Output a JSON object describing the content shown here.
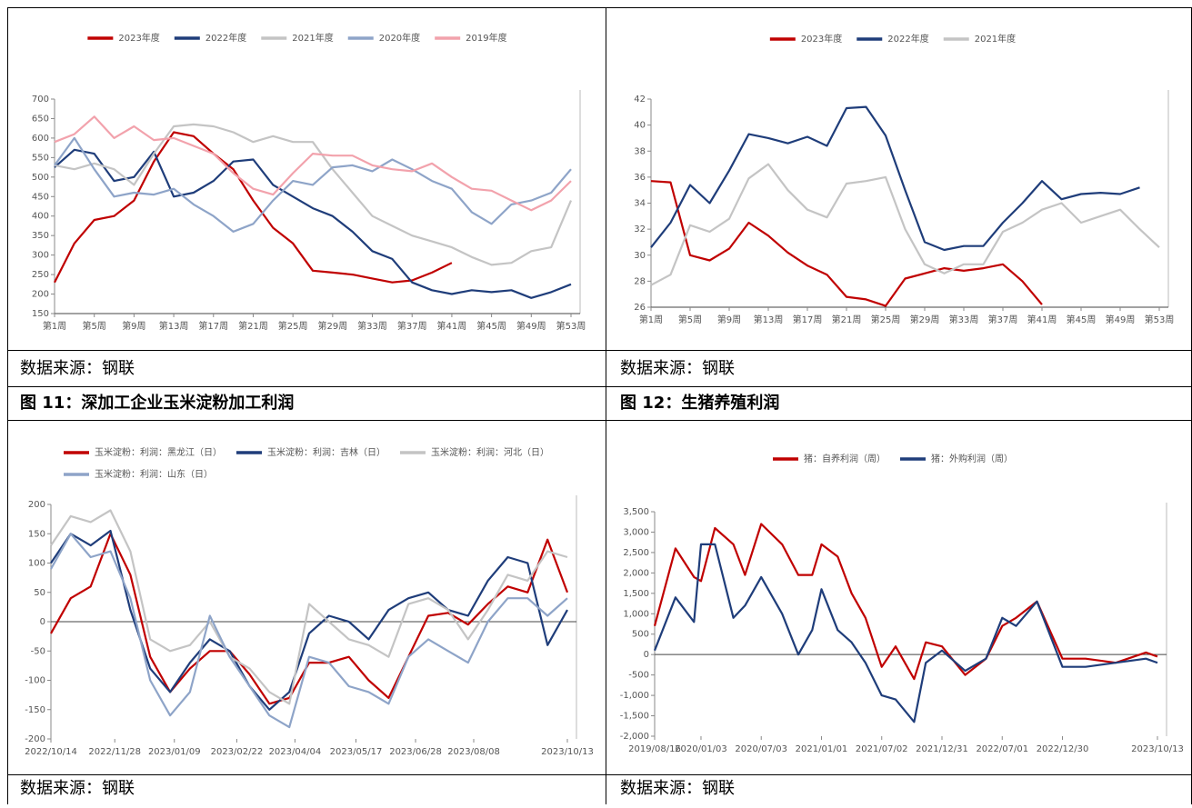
{
  "chart_data": [
    {
      "type": "line",
      "x": [
        1,
        3,
        5,
        7,
        9,
        11,
        13,
        15,
        17,
        19,
        21,
        23,
        25,
        27,
        29,
        31,
        33,
        35,
        37,
        39,
        41,
        43,
        45,
        47,
        49,
        51,
        53
      ],
      "xlim": [
        1,
        53
      ],
      "xticks": [
        {
          "value": 1,
          "label": "第1周"
        },
        {
          "value": 5,
          "label": "第5周"
        },
        {
          "value": 9,
          "label": "第9周"
        },
        {
          "value": 13,
          "label": "第13周"
        },
        {
          "value": 17,
          "label": "第17周"
        },
        {
          "value": 21,
          "label": "第21周"
        },
        {
          "value": 25,
          "label": "第25周"
        },
        {
          "value": 29,
          "label": "第29周"
        },
        {
          "value": 33,
          "label": "第33周"
        },
        {
          "value": 37,
          "label": "第37周"
        },
        {
          "value": 41,
          "label": "第41周"
        },
        {
          "value": 45,
          "label": "第45周"
        },
        {
          "value": 49,
          "label": "第49周"
        },
        {
          "value": 53,
          "label": "第53周"
        }
      ],
      "ylim": [
        150,
        700
      ],
      "yticks": [
        150,
        200,
        250,
        300,
        350,
        400,
        450,
        500,
        550,
        600,
        650,
        700
      ],
      "series": [
        {
          "name": "2023年度",
          "color": "#c00000",
          "values": [
            230,
            330,
            390,
            400,
            440,
            540,
            615,
            605,
            560,
            520,
            440,
            370,
            330,
            260,
            255,
            250,
            240,
            230,
            235,
            255,
            280,
            null,
            null,
            null,
            null,
            null,
            null
          ]
        },
        {
          "name": "2022年度",
          "color": "#1f3d7a",
          "values": [
            525,
            570,
            560,
            490,
            500,
            565,
            450,
            460,
            490,
            540,
            545,
            480,
            450,
            420,
            400,
            360,
            310,
            290,
            230,
            210,
            200,
            210,
            205,
            210,
            190,
            205,
            225
          ]
        },
        {
          "name": "2021年度",
          "color": "#c4c4c4",
          "values": [
            530,
            520,
            535,
            520,
            480,
            560,
            630,
            635,
            630,
            615,
            590,
            605,
            590,
            590,
            520,
            460,
            400,
            375,
            350,
            335,
            320,
            295,
            275,
            280,
            310,
            320,
            440
          ]
        },
        {
          "name": "2020年度",
          "color": "#8ea4c8",
          "values": [
            530,
            600,
            520,
            450,
            460,
            455,
            470,
            430,
            400,
            360,
            380,
            440,
            490,
            480,
            525,
            530,
            515,
            545,
            520,
            490,
            470,
            410,
            380,
            430,
            440,
            460,
            520
          ]
        },
        {
          "name": "2019年度",
          "color": "#f2a2ac",
          "values": [
            590,
            610,
            655,
            600,
            630,
            595,
            600,
            580,
            560,
            510,
            470,
            455,
            510,
            560,
            555,
            555,
            530,
            520,
            515,
            535,
            500,
            470,
            465,
            440,
            415,
            440,
            490
          ]
        }
      ]
    },
    {
      "type": "line",
      "x": [
        1,
        3,
        5,
        7,
        9,
        11,
        13,
        15,
        17,
        19,
        21,
        23,
        25,
        27,
        29,
        31,
        33,
        35,
        37,
        39,
        41,
        43,
        45,
        47,
        49,
        51,
        53
      ],
      "xlim": [
        1,
        53
      ],
      "xticks": [
        {
          "value": 1,
          "label": "第1周"
        },
        {
          "value": 5,
          "label": "第5周"
        },
        {
          "value": 9,
          "label": "第9周"
        },
        {
          "value": 13,
          "label": "第13周"
        },
        {
          "value": 17,
          "label": "第17周"
        },
        {
          "value": 21,
          "label": "第21周"
        },
        {
          "value": 25,
          "label": "第25周"
        },
        {
          "value": 29,
          "label": "第29周"
        },
        {
          "value": 33,
          "label": "第33周"
        },
        {
          "value": 37,
          "label": "第37周"
        },
        {
          "value": 41,
          "label": "第41周"
        },
        {
          "value": 45,
          "label": "第45周"
        },
        {
          "value": 49,
          "label": "第49周"
        },
        {
          "value": 53,
          "label": "第53周"
        }
      ],
      "ylim": [
        26,
        42
      ],
      "yticks": [
        26,
        28,
        30,
        32,
        34,
        36,
        38,
        40,
        42
      ],
      "series": [
        {
          "name": "2023年度",
          "color": "#c00000",
          "values": [
            35.7,
            35.6,
            30,
            29.6,
            30.5,
            32.5,
            31.5,
            30.2,
            29.2,
            28.5,
            26.8,
            26.6,
            26.1,
            28.2,
            28.6,
            29,
            28.8,
            29,
            29.3,
            28,
            26.2,
            null,
            null,
            null,
            null,
            null,
            null
          ]
        },
        {
          "name": "2022年度",
          "color": "#1f3d7a",
          "values": [
            30.6,
            32.5,
            35.4,
            34,
            36.5,
            39.3,
            39,
            38.6,
            39.1,
            38.4,
            41.3,
            41.4,
            39.2,
            35,
            31,
            30.4,
            30.7,
            30.7,
            32.5,
            34,
            35.7,
            34.3,
            34.7,
            34.8,
            34.7,
            35.2,
            null
          ]
        },
        {
          "name": "2021年度",
          "color": "#c4c4c4",
          "values": [
            27.7,
            28.5,
            32.3,
            31.8,
            32.8,
            35.9,
            37,
            35,
            33.5,
            32.9,
            35.5,
            35.7,
            36,
            32,
            29.3,
            28.6,
            29.3,
            29.3,
            31.8,
            32.5,
            33.5,
            34,
            32.5,
            33,
            33.5,
            32,
            30.6
          ]
        }
      ]
    },
    {
      "type": "line",
      "x": [
        "2022/10/14",
        "2022/10/28",
        "2022/11/11",
        "2022/11/25",
        "2022/12/09",
        "2022/12/23",
        "2023/01/06",
        "2023/01/20",
        "2023/02/03",
        "2023/02/17",
        "2023/03/03",
        "2023/03/17",
        "2023/03/31",
        "2023/04/14",
        "2023/04/28",
        "2023/05/12",
        "2023/05/26",
        "2023/06/09",
        "2023/06/23",
        "2023/07/07",
        "2023/07/21",
        "2023/08/04",
        "2023/08/18",
        "2023/09/01",
        "2023/09/15",
        "2023/09/29",
        "2023/10/13"
      ],
      "xlim": [
        "2022/10/14",
        "2023/10/13"
      ],
      "xticks": [
        "2022/10/14",
        "2022/11/28",
        "2023/01/09",
        "2023/02/22",
        "2023/04/04",
        "2023/05/17",
        "2023/06/28",
        "2023/08/08",
        "2023/10/13"
      ],
      "ylim": [
        -200,
        200
      ],
      "yticks": [
        -200,
        -150,
        -100,
        -50,
        0,
        50,
        100,
        150,
        200
      ],
      "series": [
        {
          "name": "玉米淀粉：利润：黑龙江（日）",
          "color": "#c00000",
          "values": [
            -20,
            40,
            60,
            150,
            80,
            -60,
            -120,
            -80,
            -50,
            -50,
            -90,
            -140,
            -130,
            -70,
            -70,
            -60,
            -100,
            -130,
            -60,
            10,
            15,
            -5,
            30,
            60,
            50,
            140,
            50
          ]
        },
        {
          "name": "玉米淀粉：利润：吉林（日）",
          "color": "#1f3d7a",
          "values": [
            100,
            150,
            130,
            155,
            20,
            -80,
            -120,
            -70,
            -30,
            -50,
            -110,
            -150,
            -120,
            -20,
            10,
            0,
            -30,
            20,
            40,
            50,
            20,
            10,
            70,
            110,
            100,
            -40,
            20
          ]
        },
        {
          "name": "玉米淀粉：利润：河北（日）",
          "color": "#c4c4c4",
          "values": [
            130,
            180,
            170,
            190,
            120,
            -30,
            -50,
            -40,
            0,
            -60,
            -80,
            -120,
            -140,
            30,
            0,
            -30,
            -40,
            -60,
            30,
            40,
            20,
            -30,
            20,
            80,
            70,
            120,
            110
          ]
        },
        {
          "name": "玉米淀粉：利润：山东（日）",
          "color": "#8ea4c8",
          "values": [
            90,
            150,
            110,
            120,
            40,
            -100,
            -160,
            -120,
            10,
            -60,
            -110,
            -160,
            -180,
            -60,
            -70,
            -110,
            -120,
            -140,
            -60,
            -30,
            -50,
            -70,
            0,
            40,
            40,
            10,
            40
          ]
        }
      ]
    },
    {
      "type": "line",
      "x": [
        "2019/08/16",
        "2019/10/18",
        "2019/12/13",
        "2020/01/03",
        "2020/02/14",
        "2020/04/10",
        "2020/05/15",
        "2020/07/03",
        "2020/09/04",
        "2020/10/23",
        "2020/12/04",
        "2021/01/01",
        "2021/02/19",
        "2021/04/02",
        "2021/05/14",
        "2021/07/02",
        "2021/08/13",
        "2021/10/08",
        "2021/11/12",
        "2021/12/31",
        "2022/03/11",
        "2022/05/13",
        "2022/07/01",
        "2022/08/12",
        "2022/10/14",
        "2022/12/30",
        "2023/03/10",
        "2023/06/09",
        "2023/09/08",
        "2023/10/13"
      ],
      "xlim": [
        "2019/08/16",
        "2023/10/13"
      ],
      "xticks": [
        "2019/08/16",
        "2020/01/03",
        "2020/07/03",
        "2021/01/01",
        "2021/07/02",
        "2021/12/31",
        "2022/07/01",
        "2022/12/30",
        "2023/10/13"
      ],
      "ylim": [
        -2000,
        3500
      ],
      "yticks": [
        {
          "value": -2000,
          "label": "-2,000"
        },
        {
          "value": -1500,
          "label": "-1,500"
        },
        {
          "value": -1000,
          "label": "-1,000"
        },
        -500,
        0,
        500,
        {
          "value": 1000,
          "label": "1,000"
        },
        {
          "value": 1500,
          "label": "1,500"
        },
        {
          "value": 2000,
          "label": "2,000"
        },
        {
          "value": 2500,
          "label": "2,500"
        },
        {
          "value": 3000,
          "label": "3,000"
        },
        {
          "value": 3500,
          "label": "3,500"
        }
      ],
      "series": [
        {
          "name": "猪：自养利润（周）",
          "color": "#c00000",
          "values": [
            700,
            2600,
            1900,
            1800,
            3100,
            2700,
            1950,
            3200,
            2700,
            1950,
            1950,
            2700,
            2400,
            1500,
            900,
            -300,
            200,
            -600,
            300,
            200,
            -500,
            -100,
            700,
            900,
            1300,
            -100,
            -100,
            -200,
            50,
            -50
          ]
        },
        {
          "name": "猪：外购利润（周）",
          "color": "#1f3d7a",
          "values": [
            100,
            1400,
            800,
            2700,
            2700,
            900,
            1200,
            1900,
            1000,
            0,
            600,
            1600,
            600,
            300,
            -200,
            -1000,
            -1100,
            -1650,
            -200,
            100,
            -400,
            -100,
            900,
            700,
            1300,
            -300,
            -300,
            -200,
            -100,
            -200
          ]
        }
      ]
    }
  ],
  "sources": [
    "数据来源：钢联",
    "数据来源：钢联",
    "数据来源：钢联",
    "数据来源：钢联"
  ],
  "figure_titles": [
    "图 11：深加工企业玉米淀粉加工利润",
    "图 12：生猪养殖利润"
  ]
}
